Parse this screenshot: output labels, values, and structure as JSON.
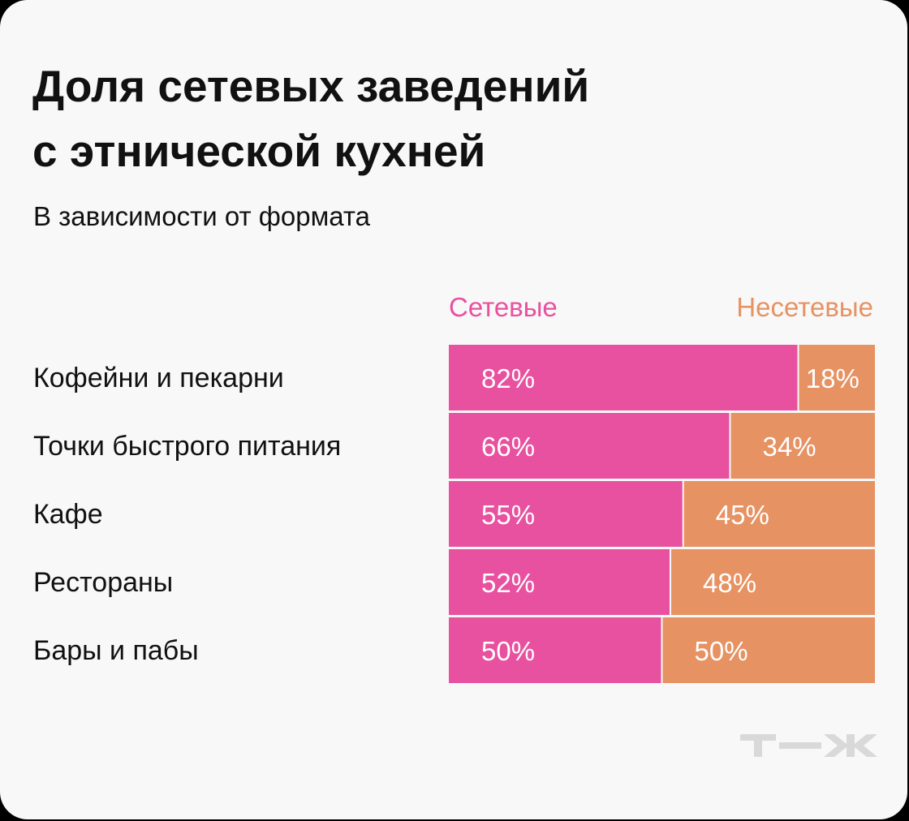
{
  "title_lines": [
    "Доля сетевых заведений",
    "с этнической кухней"
  ],
  "subtitle": "В зависимости от формата",
  "chart_data": {
    "type": "bar",
    "stacked": true,
    "orientation": "horizontal",
    "normalized": true,
    "categories": [
      "Кофейни и пекарни",
      "Точки быстрого питания",
      "Кафе",
      "Рестораны",
      "Бары и пабы"
    ],
    "series": [
      {
        "name": "Сетевые",
        "values": [
          82,
          66,
          55,
          52,
          50
        ],
        "labels": [
          "82%",
          "66%",
          "55%",
          "52%",
          "50%"
        ],
        "color": "#e8519f"
      },
      {
        "name": "Несетевые",
        "values": [
          18,
          34,
          45,
          48,
          50
        ],
        "labels": [
          "18%",
          "34%",
          "45%",
          "48%",
          "50%"
        ],
        "color": "#e69262"
      }
    ],
    "xlim": [
      0,
      100
    ],
    "grid": false,
    "legend_placement": "top"
  },
  "logo": "т—ж"
}
